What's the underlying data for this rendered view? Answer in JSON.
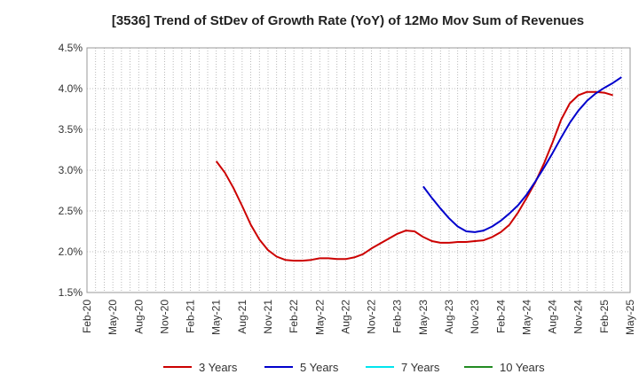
{
  "chart_data": {
    "type": "line",
    "title": "[3536]  Trend of StDev of Growth Rate (YoY) of 12Mo Mov Sum of Revenues",
    "xlabel": "",
    "ylabel": "",
    "x_tick_labels": [
      "Feb-20",
      "May-20",
      "Aug-20",
      "Nov-20",
      "Feb-21",
      "May-21",
      "Aug-21",
      "Nov-21",
      "Feb-22",
      "May-22",
      "Aug-22",
      "Nov-22",
      "Feb-23",
      "May-23",
      "Aug-23",
      "Nov-23",
      "Feb-24",
      "May-24",
      "Aug-24",
      "Nov-24",
      "Feb-25",
      "May-25"
    ],
    "y_tick_labels": [
      "1.5%",
      "2.0%",
      "2.5%",
      "3.0%",
      "3.5%",
      "4.0%",
      "4.5%"
    ],
    "ylim": [
      1.5,
      4.5
    ],
    "grid": true,
    "legend_position": "bottom",
    "series": [
      {
        "name": "3 Years",
        "color": "#cc0000",
        "start_index": 15,
        "values": [
          3.11,
          2.97,
          2.78,
          2.56,
          2.33,
          2.15,
          2.02,
          1.94,
          1.9,
          1.89,
          1.89,
          1.9,
          1.92,
          1.92,
          1.91,
          1.91,
          1.93,
          1.97,
          2.04,
          2.1,
          2.16,
          2.22,
          2.26,
          2.25,
          2.18,
          2.13,
          2.11,
          2.11,
          2.12,
          2.12,
          2.13,
          2.14,
          2.18,
          2.24,
          2.33,
          2.48,
          2.66,
          2.85,
          3.08,
          3.34,
          3.62,
          3.82,
          3.92,
          3.96,
          3.96,
          3.95,
          3.92
        ]
      },
      {
        "name": "5 Years",
        "color": "#0000cc",
        "start_index": 39,
        "values": [
          2.8,
          2.66,
          2.53,
          2.41,
          2.31,
          2.25,
          2.24,
          2.26,
          2.31,
          2.38,
          2.47,
          2.57,
          2.7,
          2.86,
          3.03,
          3.21,
          3.4,
          3.58,
          3.73,
          3.85,
          3.94,
          4.01,
          4.07,
          4.14
        ]
      },
      {
        "name": "7 Years",
        "color": "#00e5ee",
        "start_index": 0,
        "values": []
      },
      {
        "name": "10 Years",
        "color": "#228b22",
        "start_index": 0,
        "values": []
      }
    ]
  }
}
